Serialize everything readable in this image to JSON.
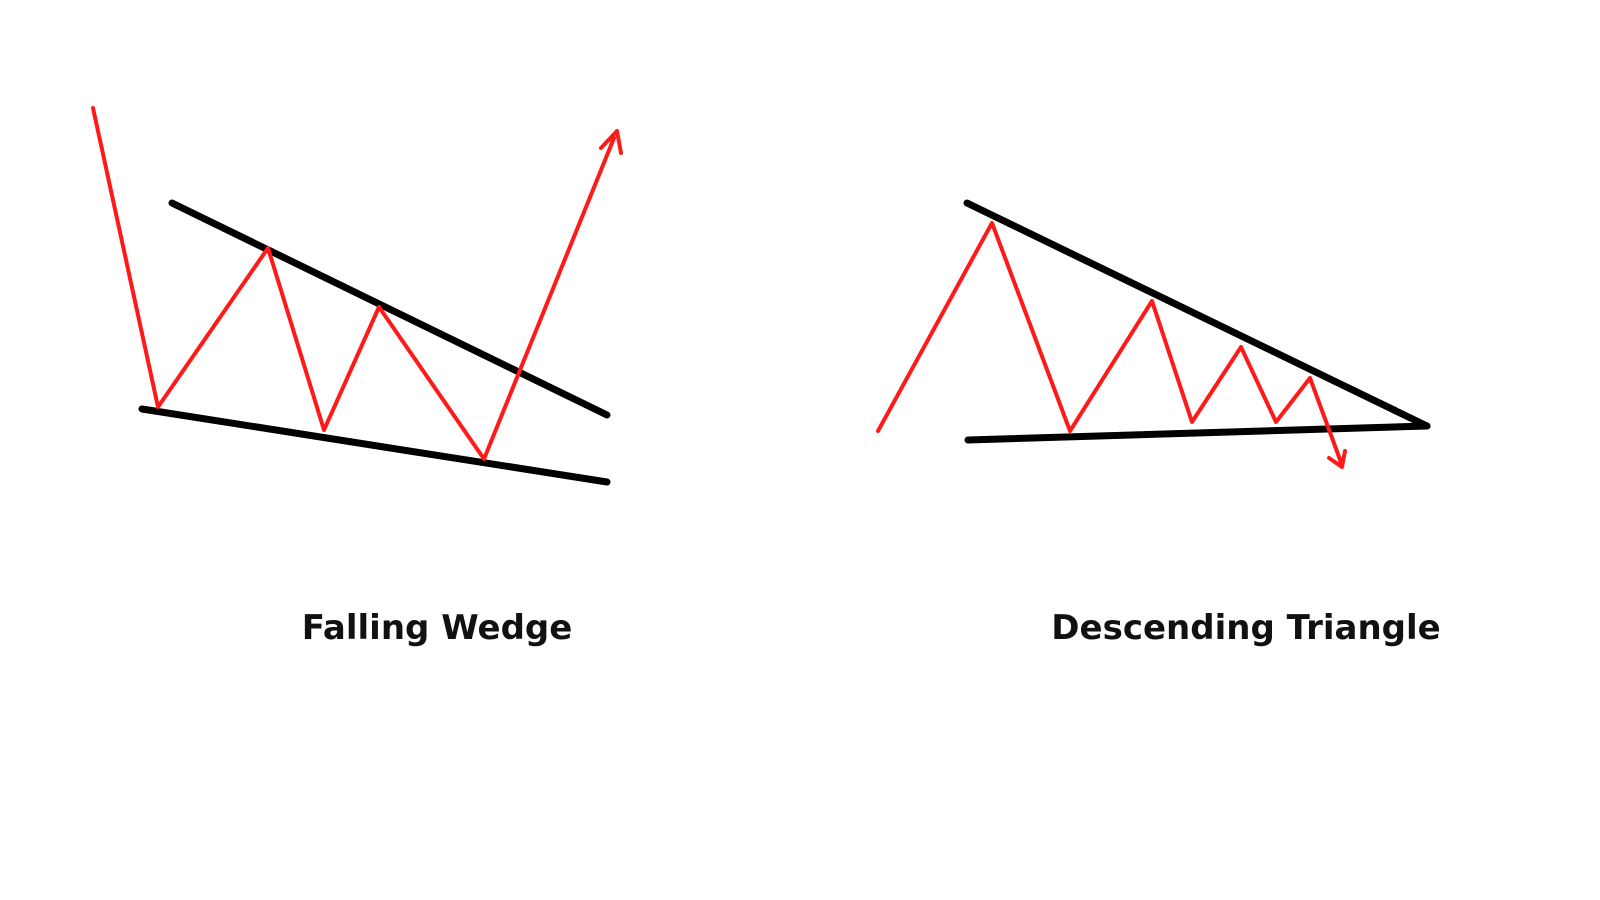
{
  "diagrams": [
    {
      "name": "falling-wedge",
      "label": "Falling Wedge",
      "breakout": "up",
      "trendline_color": "#000000",
      "price_color": "#ff1a1a"
    },
    {
      "name": "descending-triangle",
      "label": "Descending Triangle",
      "breakout": "down",
      "trendline_color": "#000000",
      "price_color": "#ff1a1a"
    }
  ]
}
